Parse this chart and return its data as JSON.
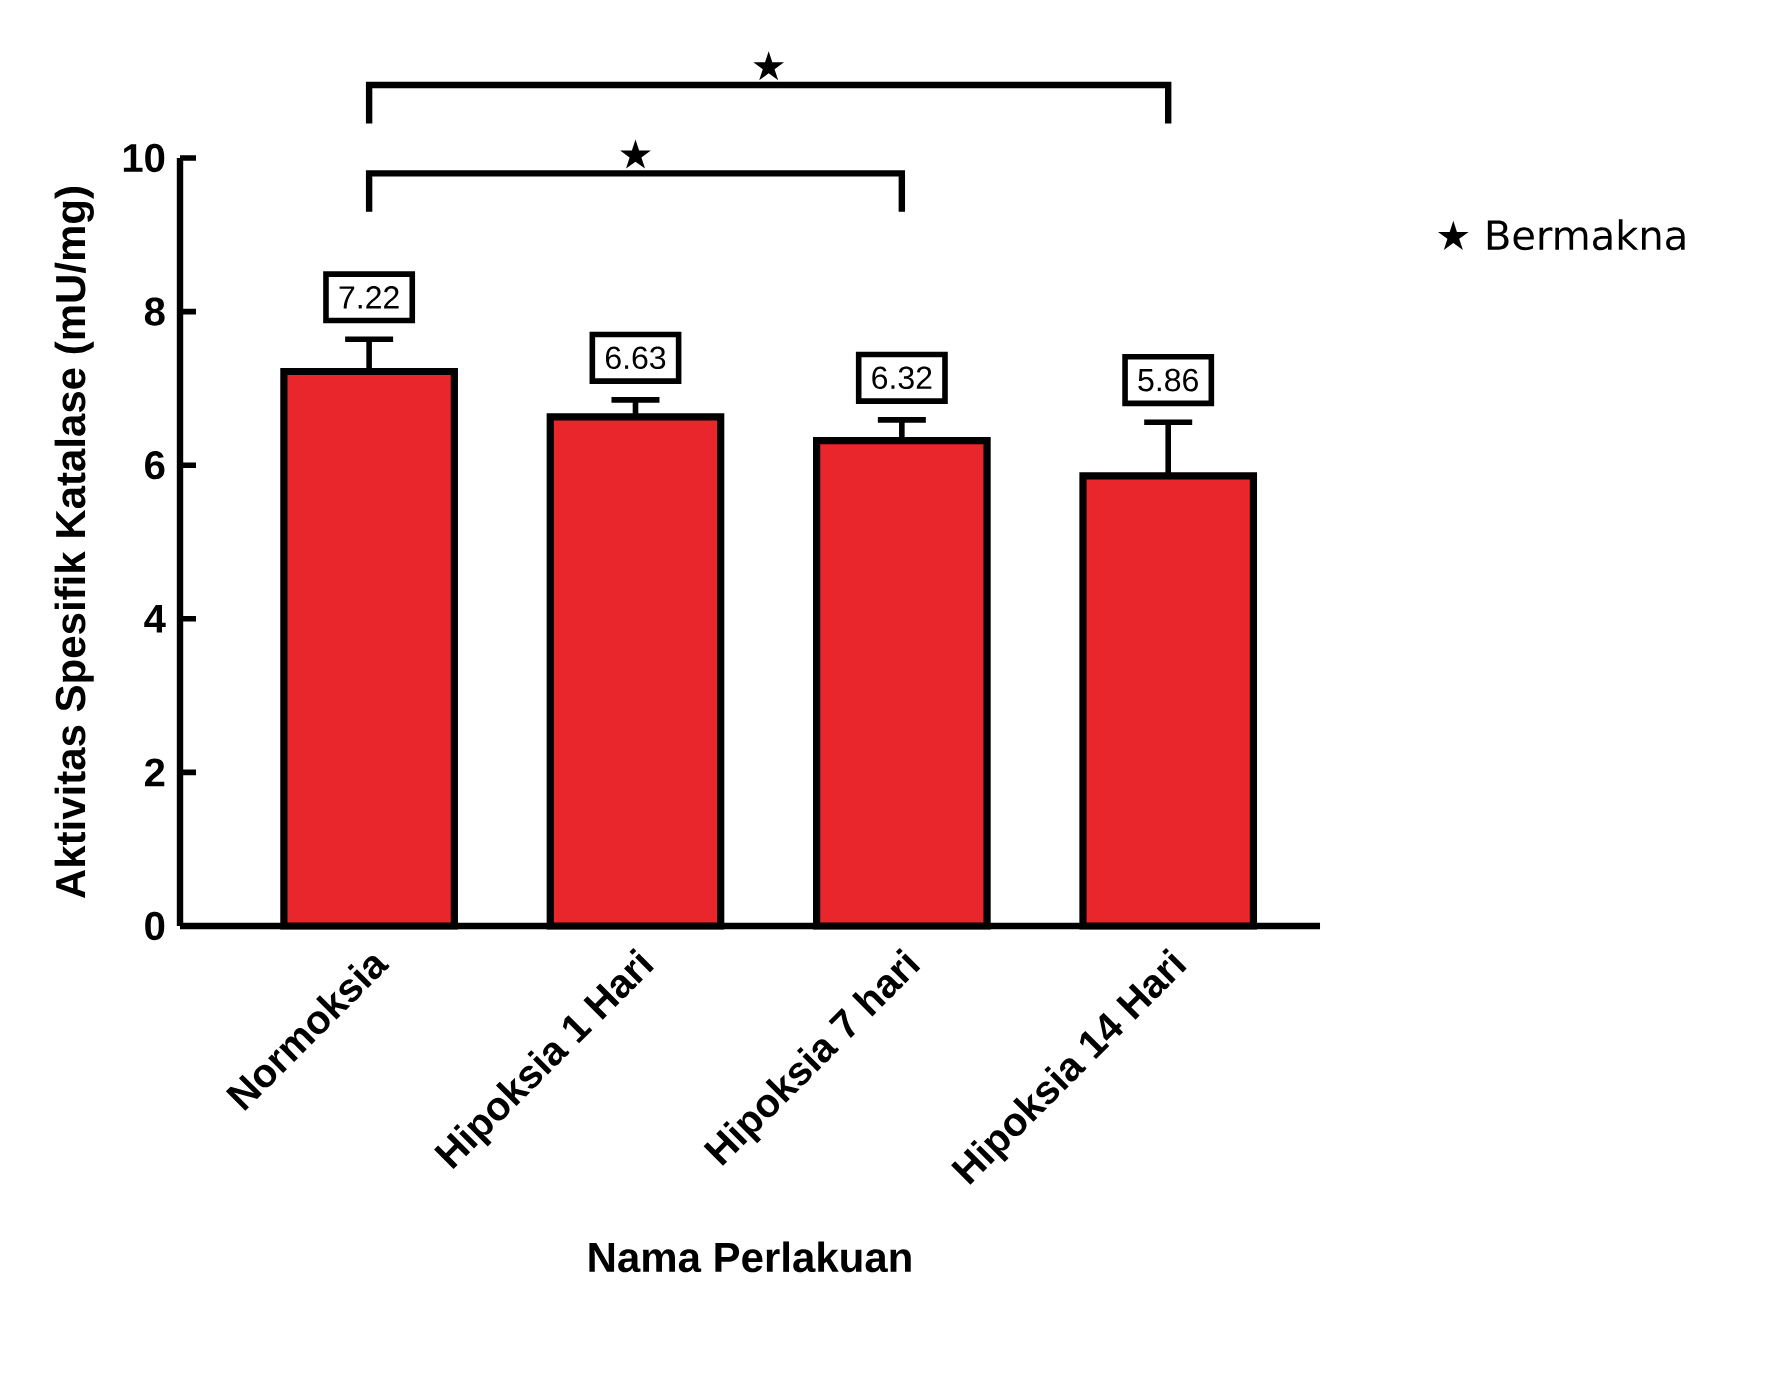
{
  "chart_data": {
    "type": "bar",
    "xlabel": "Nama Perlakuan",
    "ylabel": "Aktivitas Spesifik Katalase (mU/mg)",
    "categories": [
      "Normoksia",
      "Hipoksia 1 Hari",
      "Hipoksia 7 hari",
      "Hipoksia 14 Hari"
    ],
    "values": [
      7.22,
      6.63,
      6.32,
      5.86
    ],
    "errors": [
      0.42,
      0.22,
      0.27,
      0.7
    ],
    "color": "#e8262b",
    "data_labels": true,
    "ylim": [
      0,
      10
    ],
    "yticks": [
      0,
      2,
      4,
      6,
      8,
      10
    ],
    "grid": false,
    "annotations": [
      "★",
      "★",
      "★ Bermakna"
    ]
  }
}
